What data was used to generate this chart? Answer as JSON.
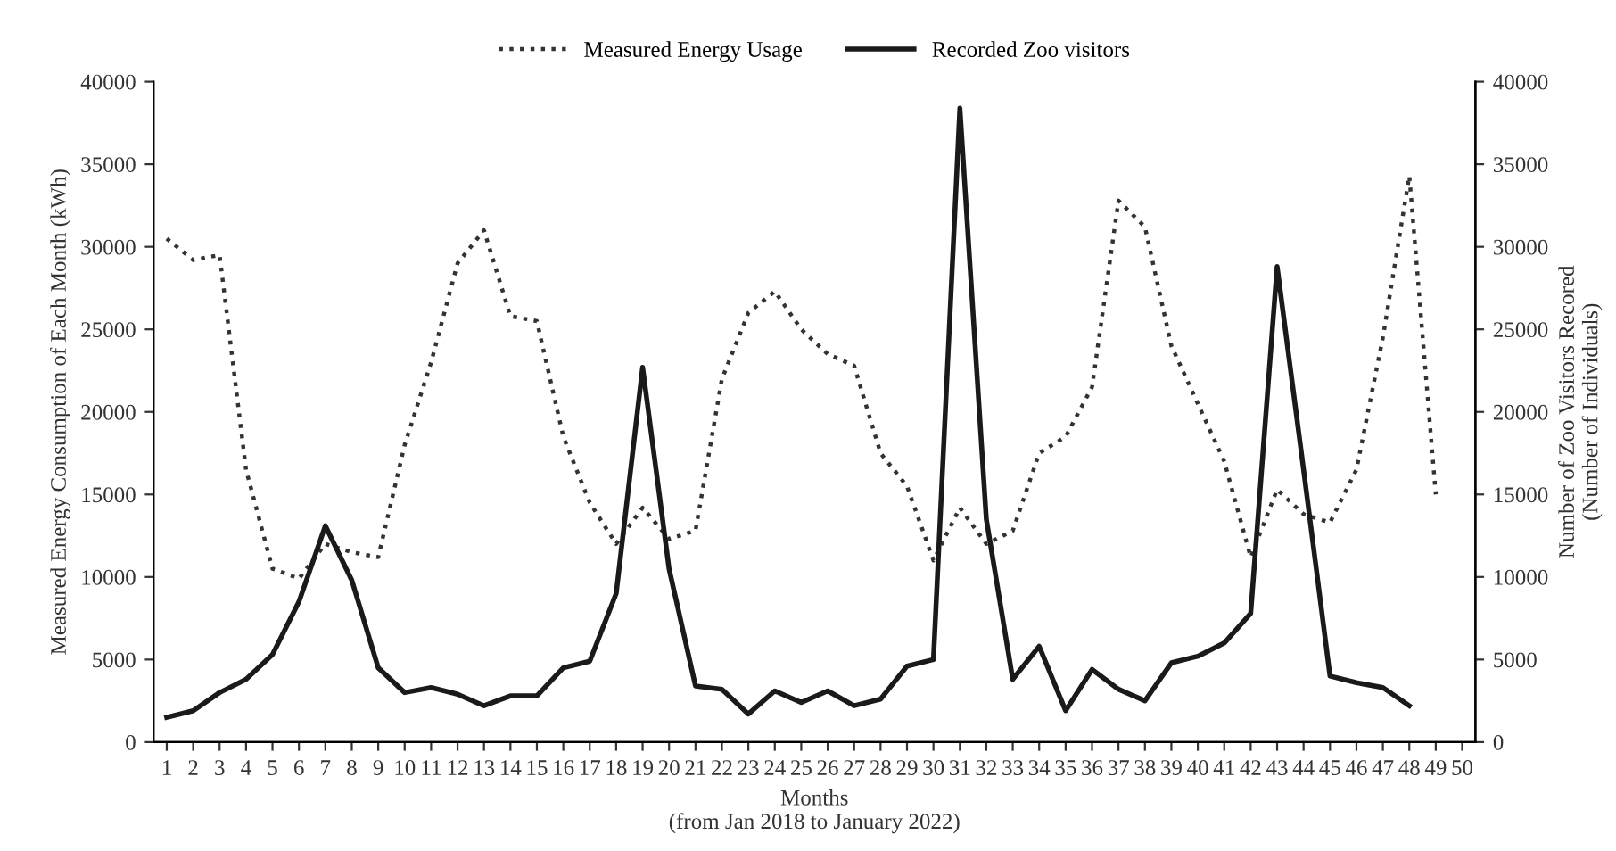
{
  "chart_data": {
    "type": "line",
    "xlabel": "Months\n(from Jan 2018 to January 2022)",
    "ylabel": "Measured Energy Consumption of Each Month (kWh)",
    "y2label": "Number of Zoo Visitors Recored\n(Number of Individuals)",
    "categories": [
      "1",
      "2",
      "3",
      "4",
      "5",
      "6",
      "7",
      "8",
      "9",
      "10",
      "11",
      "12",
      "13",
      "14",
      "15",
      "16",
      "17",
      "18",
      "19",
      "20",
      "21",
      "22",
      "23",
      "24",
      "25",
      "26",
      "27",
      "28",
      "29",
      "30",
      "31",
      "32",
      "33",
      "34",
      "35",
      "36",
      "37",
      "38",
      "39",
      "40",
      "41",
      "42",
      "43",
      "44",
      "45",
      "46",
      "47",
      "48",
      "49",
      "50"
    ],
    "series": [
      {
        "name": "Measured Energy Usage",
        "color": "#333333",
        "line_style": "dotted",
        "values": [
          30500,
          29200,
          29500,
          16500,
          10500,
          9900,
          12000,
          11500,
          11200,
          18000,
          23000,
          29000,
          31000,
          25800,
          25500,
          18500,
          14500,
          12000,
          14200,
          12300,
          12800,
          22000,
          26000,
          27300,
          25000,
          23500,
          22800,
          17500,
          15500,
          11000,
          14200,
          12000,
          12800,
          17500,
          18500,
          21500,
          32800,
          31200,
          24000,
          20500,
          17000,
          11200,
          15300,
          13800,
          13300,
          16500,
          24500,
          34300,
          15000,
          null
        ]
      },
      {
        "name": "Recorded Zoo visitors",
        "color": "#1a1a1a",
        "line_style": "solid",
        "axis": "y2",
        "values": [
          1500,
          1900,
          3000,
          3800,
          5300,
          8500,
          13100,
          9800,
          4500,
          3000,
          3300,
          2900,
          2200,
          2800,
          2800,
          4500,
          4900,
          9000,
          22700,
          10500,
          3400,
          3200,
          1700,
          3100,
          2400,
          3100,
          2200,
          2600,
          4600,
          5000,
          38400,
          13500,
          3800,
          5800,
          1900,
          4400,
          3200,
          2500,
          4800,
          5200,
          6000,
          7800,
          28800,
          16500,
          4000,
          3600,
          3300,
          2200,
          null,
          null
        ]
      }
    ],
    "ylim": [
      0,
      40000
    ],
    "yticks": [
      0,
      5000,
      10000,
      15000,
      20000,
      25000,
      30000,
      35000,
      40000
    ],
    "y2lim": [
      0,
      40000
    ],
    "y2ticks": [
      0,
      5000,
      10000,
      15000,
      20000,
      25000,
      30000,
      35000,
      40000
    ],
    "grid": false,
    "legend": "top",
    "marker": "none"
  }
}
